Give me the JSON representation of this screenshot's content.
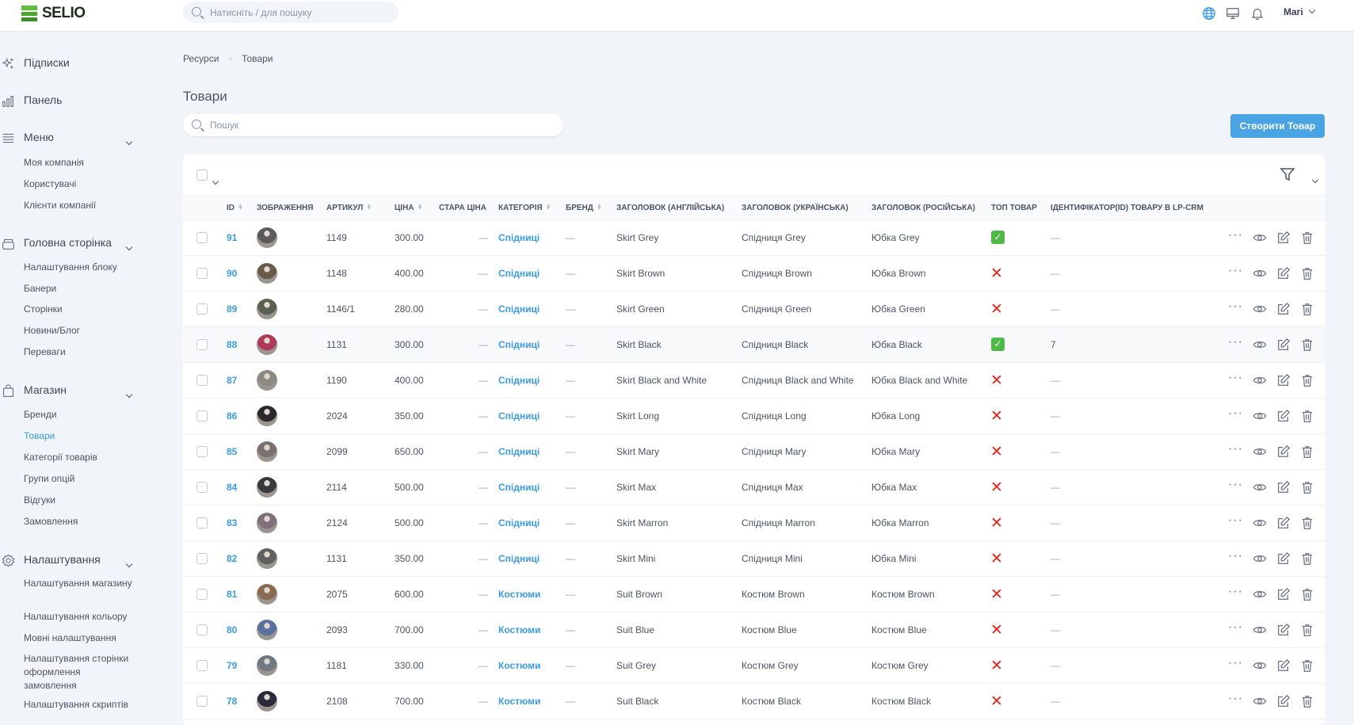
{
  "header": {
    "logo": "SELIO",
    "search_placeholder": "Натисніть / для пошуку",
    "user": "Mari",
    "icons": [
      "globe-icon",
      "monitor-icon",
      "bell-icon"
    ]
  },
  "sidebar": {
    "top": [
      {
        "label": "Підписки",
        "icon": "sparkles-icon"
      },
      {
        "label": "Панель",
        "icon": "bar-chart-icon"
      }
    ],
    "sections": [
      {
        "label": "Меню",
        "icon": "menu-icon",
        "items": [
          "Моя компанія",
          "Користувачі",
          "Клієнти компанії"
        ]
      },
      {
        "label": "Головна сторінка",
        "icon": "box-icon",
        "items": [
          "Налаштування блоку",
          "Банери",
          "Сторінки",
          "Новини/Блог",
          "Переваги"
        ]
      },
      {
        "label": "Магазин",
        "icon": "shopping-bag-icon",
        "items": [
          "Бренди",
          "Товари",
          "Категорії товарів",
          "Групи опцій",
          "Відгуки",
          "Замовлення"
        ],
        "active": "Товари"
      },
      {
        "label": "Налаштування",
        "icon": "gear-icon",
        "items": [
          "Налаштування магазину",
          "Налаштування кольору",
          "Мовні налаштування",
          "Налаштування сторінки оформлення замовлення",
          "Налаштування скриптів"
        ]
      }
    ]
  },
  "breadcrumb": [
    "Ресурси",
    "Товари"
  ],
  "page_title": "Товари",
  "search_placeholder": "Пошук",
  "create_button": "Створити Товар",
  "accent": "#4aa3e2",
  "table": {
    "columns": [
      "ID",
      "ЗОБРАЖЕННЯ",
      "АРТИКУЛ",
      "ЦІНА",
      "СТАРА ЦІНА",
      "КАТЕГОРІЯ",
      "БРЕНД",
      "ЗАГОЛОВОК (АНГЛІЙСЬКА)",
      "ЗАГОЛОВОК (УКРАЇНСЬКА)",
      "ЗАГОЛОВОК (РОСІЙСЬКА)",
      "ТОП ТОВАР",
      "ІДЕНТИФІКАТОР(ID) ТОВАРУ В LP-CRM"
    ],
    "rows": [
      {
        "id": "91",
        "sku": "1149",
        "price": "300.00",
        "old": "—",
        "cat": "Спідниці",
        "brand": "—",
        "en": "Skirt Grey",
        "ua": "Спідниця Grey",
        "ru": "Юбка Grey",
        "top": true,
        "lp": "—"
      },
      {
        "id": "90",
        "sku": "1148",
        "price": "400.00",
        "old": "—",
        "cat": "Спідниці",
        "brand": "—",
        "en": "Skirt Brown",
        "ua": "Спідниця Brown",
        "ru": "Юбка Brown",
        "top": false,
        "lp": "—"
      },
      {
        "id": "89",
        "sku": "1146/1",
        "price": "280.00",
        "old": "—",
        "cat": "Спідниці",
        "brand": "—",
        "en": "Skirt Green",
        "ua": "Спідниця Green",
        "ru": "Юбка Green",
        "top": false,
        "lp": "—"
      },
      {
        "id": "88",
        "sku": "1131",
        "price": "300.00",
        "old": "—",
        "cat": "Спідниці",
        "brand": "—",
        "en": "Skirt Black",
        "ua": "Спідниця Black",
        "ru": "Юбка Black",
        "top": true,
        "lp": "7"
      },
      {
        "id": "87",
        "sku": "1190",
        "price": "400.00",
        "old": "—",
        "cat": "Спідниці",
        "brand": "—",
        "en": "Skirt Black and White",
        "ua": "Спідниця Black and White",
        "ru": "Юбка Black and White",
        "top": false,
        "lp": "—"
      },
      {
        "id": "86",
        "sku": "2024",
        "price": "350.00",
        "old": "—",
        "cat": "Спідниці",
        "brand": "—",
        "en": "Skirt Long",
        "ua": "Спідниця Long",
        "ru": "Юбка Long",
        "top": false,
        "lp": "—"
      },
      {
        "id": "85",
        "sku": "2099",
        "price": "650.00",
        "old": "—",
        "cat": "Спідниці",
        "brand": "—",
        "en": "Skirt Mary",
        "ua": "Спідниця Mary",
        "ru": "Юбка Mary",
        "top": false,
        "lp": "—"
      },
      {
        "id": "84",
        "sku": "2114",
        "price": "500.00",
        "old": "—",
        "cat": "Спідниці",
        "brand": "—",
        "en": "Skirt Max",
        "ua": "Спідниця Max",
        "ru": "Юбка Max",
        "top": false,
        "lp": "—"
      },
      {
        "id": "83",
        "sku": "2124",
        "price": "500.00",
        "old": "—",
        "cat": "Спідниці",
        "brand": "—",
        "en": "Skirt Marron",
        "ua": "Спідниця Marron",
        "ru": "Юбка Marron",
        "top": false,
        "lp": "—"
      },
      {
        "id": "82",
        "sku": "1131",
        "price": "350.00",
        "old": "—",
        "cat": "Спідниці",
        "brand": "—",
        "en": "Skirt Mini",
        "ua": "Спідниця Mini",
        "ru": "Юбка Mini",
        "top": false,
        "lp": "—"
      },
      {
        "id": "81",
        "sku": "2075",
        "price": "600.00",
        "old": "—",
        "cat": "Костюми",
        "brand": "—",
        "en": "Suit Brown",
        "ua": "Костюм Brown",
        "ru": "Костюм Brown",
        "top": false,
        "lp": "—"
      },
      {
        "id": "80",
        "sku": "2093",
        "price": "700.00",
        "old": "—",
        "cat": "Костюми",
        "brand": "—",
        "en": "Suit Blue",
        "ua": "Костюм Blue",
        "ru": "Костюм Blue",
        "top": false,
        "lp": "—"
      },
      {
        "id": "79",
        "sku": "1181",
        "price": "330.00",
        "old": "—",
        "cat": "Костюми",
        "brand": "—",
        "en": "Suit Grey",
        "ua": "Костюм Grey",
        "ru": "Костюм Grey",
        "top": false,
        "lp": "—"
      },
      {
        "id": "78",
        "sku": "2108",
        "price": "700.00",
        "old": "—",
        "cat": "Костюми",
        "brand": "—",
        "en": "Suit Black",
        "ua": "Костюм Black",
        "ru": "Костюм Black",
        "top": false,
        "lp": "—"
      }
    ]
  }
}
